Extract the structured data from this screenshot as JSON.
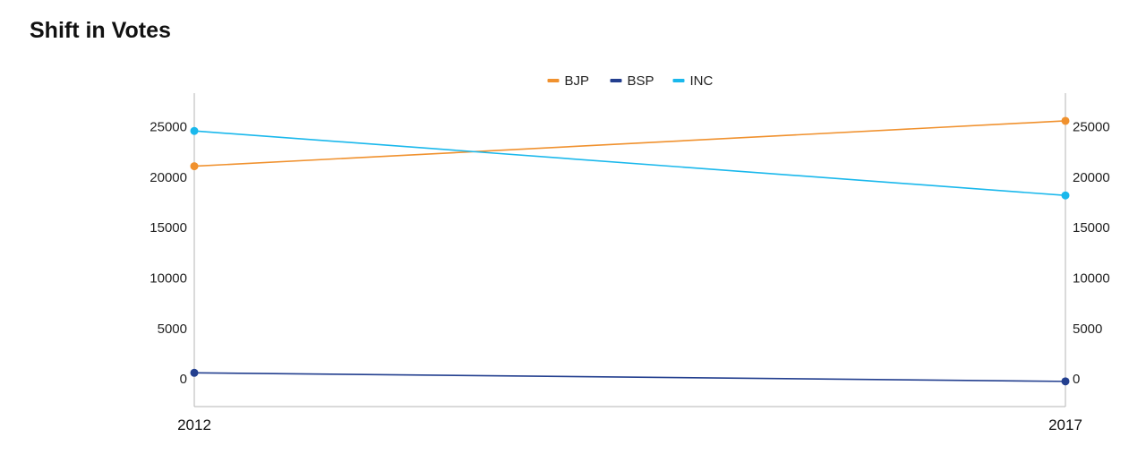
{
  "chart_data": {
    "type": "line",
    "title": "Shift in Votes",
    "categories": [
      "2012",
      "2017"
    ],
    "series": [
      {
        "name": "BJP",
        "color": "#f0912e",
        "values": [
          21100,
          25600
        ]
      },
      {
        "name": "BSP",
        "color": "#233f8f",
        "values": [
          600,
          -250
        ]
      },
      {
        "name": "INC",
        "color": "#1ab8ec",
        "values": [
          24600,
          18200
        ]
      }
    ],
    "yticks": [
      0,
      5000,
      10000,
      15000,
      20000,
      25000
    ],
    "ylim": [
      -2750,
      28350
    ],
    "y_axis_sides": [
      "left",
      "right"
    ],
    "legend_position": "top-center",
    "grid": false,
    "xlabel": "",
    "ylabel": ""
  }
}
